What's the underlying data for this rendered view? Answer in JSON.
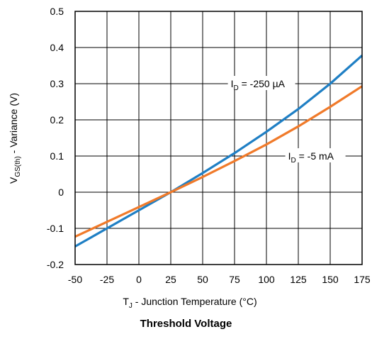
{
  "chart_data": {
    "type": "line",
    "title": "Threshold Voltage",
    "xlabel": {
      "main": "T",
      "sub": "J",
      "rest": " - Junction Temperature (°C)"
    },
    "ylabel": {
      "main": "V",
      "sub": "GS(th)",
      "rest": " - Variance (V)"
    },
    "xlim": [
      -50,
      175
    ],
    "ylim": [
      -0.2,
      0.5
    ],
    "xticks": [
      -50,
      -25,
      0,
      25,
      50,
      75,
      100,
      125,
      150,
      175
    ],
    "yticks": [
      -0.2,
      -0.1,
      0,
      0.1,
      0.2,
      0.3,
      0.4,
      0.5
    ],
    "ytick_labels": [
      "-0.2",
      "-0.1",
      "0",
      "0.1",
      "0.2",
      "0.3",
      "0.4",
      "0.5"
    ],
    "grid": true,
    "series": [
      {
        "name": {
          "main": "I",
          "sub": "D",
          "rest": " = -250 µA"
        },
        "color": "#1f7fc4",
        "x": [
          -50,
          -25,
          0,
          25,
          50,
          75,
          100,
          125,
          150,
          175
        ],
        "y": [
          -0.15,
          -0.1,
          -0.05,
          0.0,
          0.053,
          0.108,
          0.167,
          0.23,
          0.3,
          0.378
        ]
      },
      {
        "name": {
          "main": "I",
          "sub": "D",
          "rest": " = -5 mA"
        },
        "color": "#f07a2a",
        "x": [
          -50,
          -25,
          0,
          25,
          50,
          75,
          100,
          125,
          150,
          175
        ],
        "y": [
          -0.123,
          -0.082,
          -0.041,
          0.0,
          0.042,
          0.086,
          0.132,
          0.182,
          0.236,
          0.293
        ]
      }
    ]
  }
}
